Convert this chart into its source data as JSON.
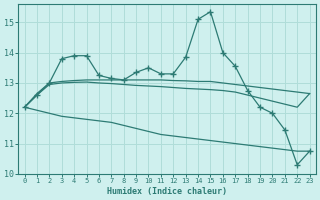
{
  "title": "",
  "xlabel": "Humidex (Indice chaleur)",
  "background_color": "#cff0ee",
  "grid_color": "#b0ddd9",
  "line_color": "#2d7b74",
  "xlim": [
    -0.5,
    23.5
  ],
  "ylim": [
    10.0,
    15.6
  ],
  "yticks": [
    10,
    11,
    12,
    13,
    14,
    15
  ],
  "xticks": [
    0,
    1,
    2,
    3,
    4,
    5,
    6,
    7,
    8,
    9,
    10,
    11,
    12,
    13,
    14,
    15,
    16,
    17,
    18,
    19,
    20,
    21,
    22,
    23
  ],
  "lines": [
    {
      "x": [
        0,
        1,
        2,
        3,
        4,
        5,
        6,
        7,
        8,
        9,
        10,
        11,
        12,
        13,
        14,
        15,
        16,
        17,
        18,
        19,
        20,
        21,
        22,
        23
      ],
      "y": [
        12.2,
        12.6,
        13.0,
        13.8,
        13.9,
        13.9,
        13.25,
        13.15,
        13.1,
        13.35,
        13.5,
        13.3,
        13.3,
        13.85,
        15.1,
        15.35,
        14.0,
        13.55,
        12.75,
        12.2,
        12.0,
        11.45,
        10.3,
        10.75
      ],
      "has_markers": true
    },
    {
      "x": [
        0,
        1,
        2,
        3,
        4,
        5,
        6,
        7,
        8,
        9,
        10,
        11,
        12,
        13,
        14,
        15,
        16,
        17,
        18,
        19,
        20,
        21,
        22,
        23
      ],
      "y": [
        12.2,
        12.65,
        13.0,
        13.05,
        13.08,
        13.1,
        13.1,
        13.1,
        13.1,
        13.1,
        13.1,
        13.1,
        13.08,
        13.07,
        13.05,
        13.05,
        13.0,
        12.95,
        12.9,
        12.85,
        12.8,
        12.75,
        12.7,
        12.65
      ],
      "has_markers": false
    },
    {
      "x": [
        0,
        1,
        2,
        3,
        4,
        5,
        6,
        7,
        8,
        9,
        10,
        11,
        12,
        13,
        14,
        15,
        16,
        17,
        18,
        19,
        20,
        21,
        22,
        23
      ],
      "y": [
        12.2,
        12.6,
        12.95,
        13.0,
        13.02,
        13.03,
        13.0,
        12.98,
        12.95,
        12.92,
        12.9,
        12.88,
        12.85,
        12.82,
        12.8,
        12.78,
        12.75,
        12.7,
        12.6,
        12.5,
        12.4,
        12.3,
        12.2,
        12.65
      ],
      "has_markers": false
    },
    {
      "x": [
        0,
        1,
        2,
        3,
        4,
        5,
        6,
        7,
        8,
        9,
        10,
        11,
        12,
        13,
        14,
        15,
        16,
        17,
        18,
        19,
        20,
        21,
        22,
        23
      ],
      "y": [
        12.2,
        12.1,
        12.0,
        11.9,
        11.85,
        11.8,
        11.75,
        11.7,
        11.6,
        11.5,
        11.4,
        11.3,
        11.25,
        11.2,
        11.15,
        11.1,
        11.05,
        11.0,
        10.95,
        10.9,
        10.85,
        10.8,
        10.75,
        10.75
      ],
      "has_markers": false
    }
  ]
}
